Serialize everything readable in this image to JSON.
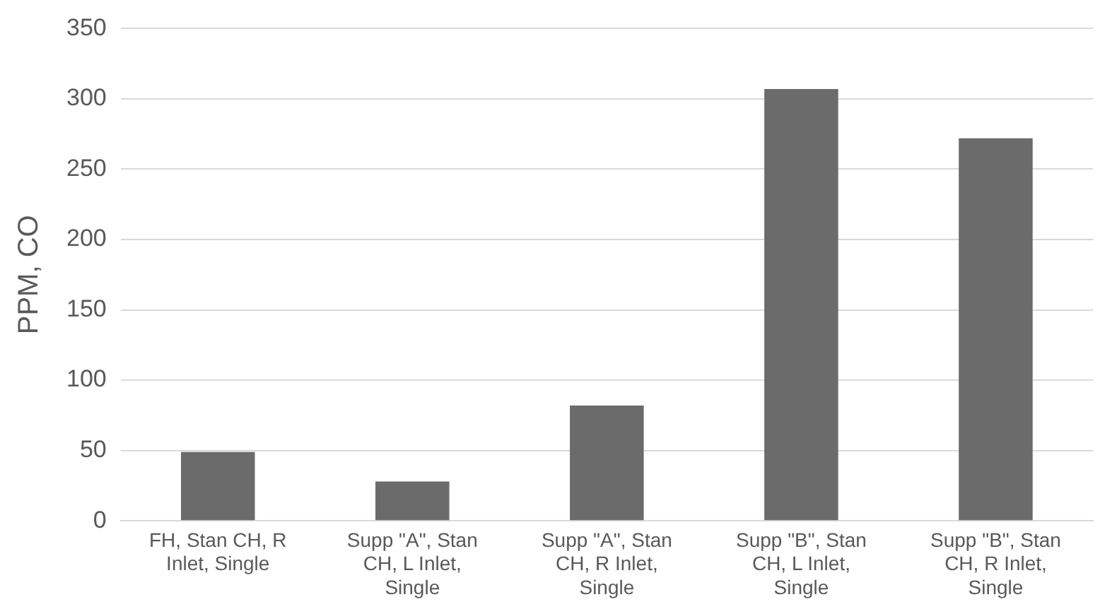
{
  "chart_data": {
    "type": "bar",
    "ylabel": "PPM, CO",
    "categories": [
      "FH, Stan CH, R Inlet, Single",
      "Supp \"A\", Stan CH, L Inlet, Single",
      "Supp \"A\", Stan CH, R Inlet, Single",
      "Supp \"B\", Stan CH, L Inlet, Single",
      "Supp \"B\", Stan CH, R Inlet, Single"
    ],
    "values": [
      49,
      28,
      82,
      307,
      272
    ],
    "color": "#6b6b6c",
    "ylim": [
      0,
      350
    ],
    "yticks": [
      0,
      50,
      100,
      150,
      200,
      250,
      300,
      350
    ],
    "grid": "y",
    "legend": false
  }
}
